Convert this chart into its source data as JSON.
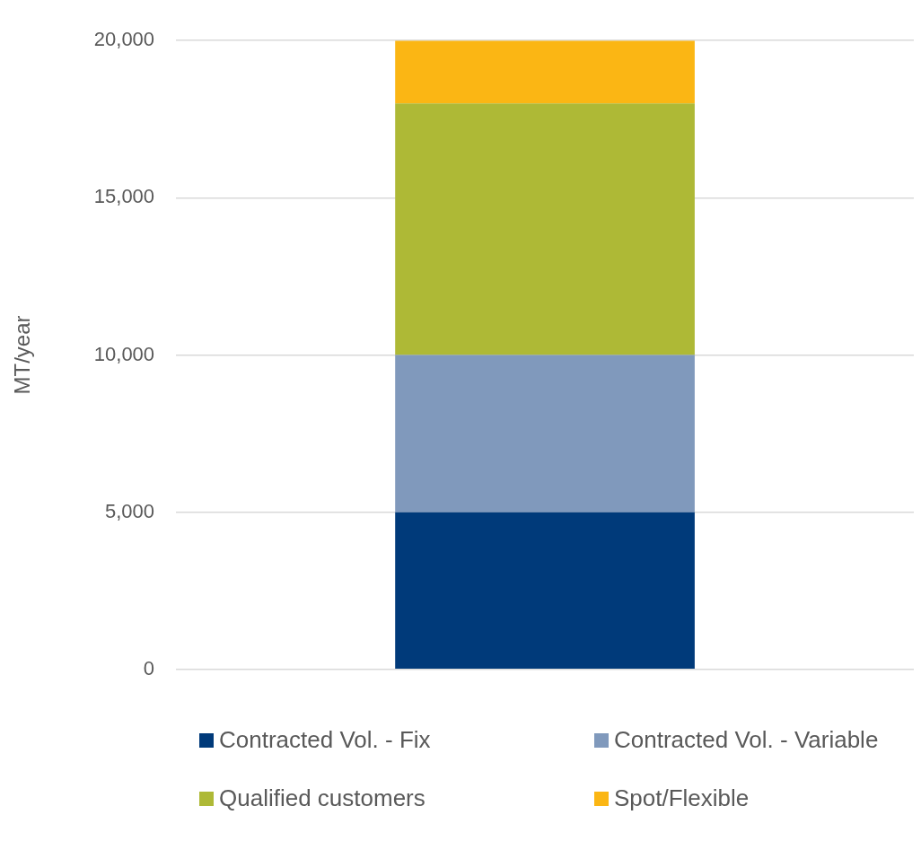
{
  "chart_data": {
    "type": "bar",
    "stacked": true,
    "ylabel": "MT/year",
    "categories": [
      null
    ],
    "series": [
      {
        "name": "Contracted Vol. - Fix",
        "color": "#003a7a",
        "values": [
          5000
        ]
      },
      {
        "name": "Contracted Vol. - Variable",
        "color": "#8099bc",
        "values": [
          5000
        ]
      },
      {
        "name": "Qualified customers",
        "color": "#aeb936",
        "values": [
          8000
        ]
      },
      {
        "name": "Spot/Flexible",
        "color": "#fbb614",
        "values": [
          2000
        ]
      }
    ],
    "ylim": [
      0,
      20000
    ],
    "yticks": [
      {
        "value": 0,
        "label": "0"
      },
      {
        "value": 5000,
        "label": "5,000"
      },
      {
        "value": 10000,
        "label": "10,000"
      },
      {
        "value": 15000,
        "label": "15,000"
      },
      {
        "value": 20000,
        "label": "20,000"
      }
    ],
    "grid": "y",
    "legend": "bottom"
  }
}
